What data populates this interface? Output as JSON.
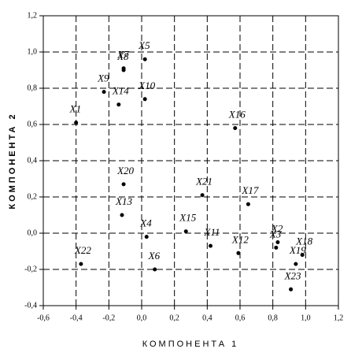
{
  "chart_data": {
    "type": "scatter",
    "xlabel": "КОМПОНЕНТА 1",
    "ylabel": "КОМПОНЕНТА 2",
    "labels": [
      "X1",
      "X2",
      "X3",
      "X4",
      "X5",
      "X6",
      "X7",
      "X8",
      "X9",
      "X10",
      "X11",
      "X12",
      "X13",
      "X14",
      "X15",
      "X16",
      "X17",
      "X18",
      "X19",
      "X20",
      "X21",
      "X22",
      "X23"
    ],
    "x": [
      -0.4,
      0.83,
      0.82,
      0.03,
      0.02,
      0.08,
      -0.11,
      -0.11,
      -0.23,
      0.02,
      0.42,
      0.59,
      -0.12,
      -0.14,
      0.27,
      0.57,
      0.65,
      0.98,
      0.94,
      -0.11,
      0.37,
      -0.37,
      0.91
    ],
    "y": [
      0.61,
      -0.05,
      -0.08,
      -0.02,
      0.96,
      -0.2,
      0.91,
      0.9,
      0.78,
      0.74,
      -0.07,
      -0.11,
      0.1,
      0.71,
      0.01,
      0.58,
      0.16,
      -0.12,
      -0.17,
      0.27,
      0.21,
      -0.17,
      -0.31
    ],
    "color": "#000000",
    "xlim": [
      -0.6,
      1.2
    ],
    "xticks": [
      {
        "value": -0.6,
        "label": "-0,6"
      },
      {
        "value": -0.4,
        "label": "-0,4"
      },
      {
        "value": -0.2,
        "label": "-0,2"
      },
      {
        "value": 0,
        "label": "0,0"
      },
      {
        "value": 0.2,
        "label": "0,2"
      },
      {
        "value": 0.4,
        "label": "0,4"
      },
      {
        "value": 0.6,
        "label": "0,6"
      },
      {
        "value": 0.8,
        "label": "0,8"
      },
      {
        "value": 1.0,
        "label": "1,0"
      },
      {
        "value": 1.2,
        "label": "1,2"
      }
    ],
    "ylim": [
      -0.4,
      1.2
    ],
    "yticks": [
      {
        "value": -0.4,
        "label": "-0,4"
      },
      {
        "value": -0.2,
        "label": "-0,2"
      },
      {
        "value": 0,
        "label": "0,0"
      },
      {
        "value": 0.2,
        "label": "0,2"
      },
      {
        "value": 0.4,
        "label": "0,4"
      },
      {
        "value": 0.6,
        "label": "0,6"
      },
      {
        "value": 0.8,
        "label": "0,8"
      },
      {
        "value": 1.0,
        "label": "1,0"
      },
      {
        "value": 1.2,
        "label": "1,2"
      }
    ],
    "grid": true
  }
}
